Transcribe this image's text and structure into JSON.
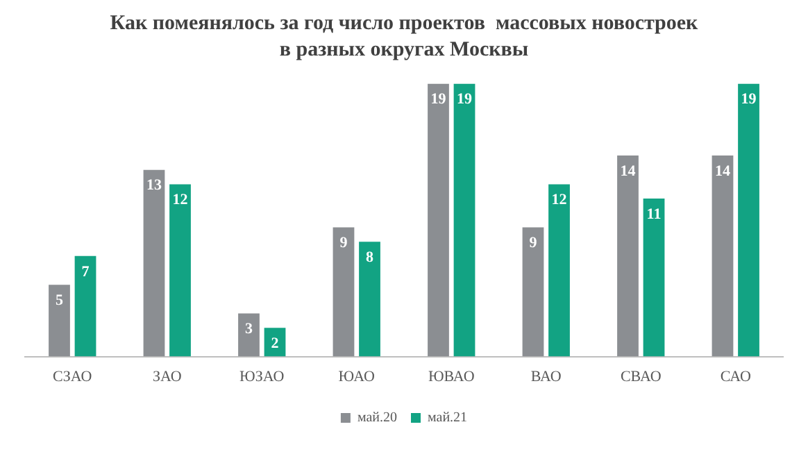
{
  "chart_data": {
    "type": "bar",
    "title": "Как помеянялось за год число проектов  массовых новостроек  в разных округах Москвы",
    "categories": [
      "СЗАО",
      "ЗАО",
      "ЮЗАО",
      "ЮАО",
      "ЮВАО",
      "ВАО",
      "СВАО",
      "САО"
    ],
    "series": [
      {
        "name": "май.20",
        "color": "#8b8e92",
        "values": [
          5,
          13,
          3,
          9,
          19,
          9,
          14,
          14
        ]
      },
      {
        "name": "май.21",
        "color": "#12a383",
        "values": [
          7,
          12,
          2,
          8,
          19,
          12,
          11,
          19
        ]
      }
    ],
    "data_labels": true,
    "legend": "bottom",
    "grid": false
  }
}
